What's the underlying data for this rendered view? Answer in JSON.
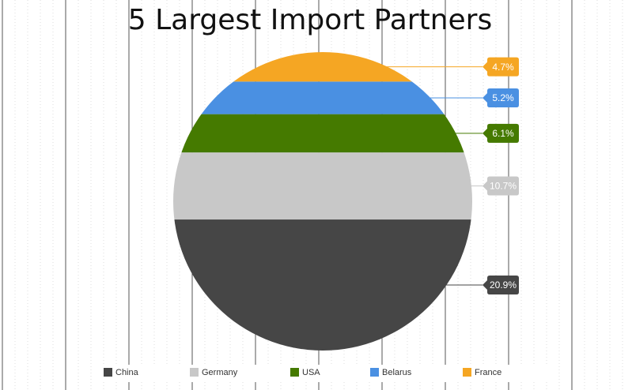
{
  "chart_data": {
    "type": "circle",
    "title": "5 Largest Import Partners",
    "categories": [
      "China",
      "Germany",
      "USA",
      "Belarus",
      "France"
    ],
    "values": [
      20.9,
      10.7,
      6.1,
      5.2,
      4.7
    ],
    "value_labels": [
      "20.9%",
      "10.7%",
      "6.1%",
      "5.2%",
      "4.7%"
    ],
    "colors": [
      "#464646",
      "#c8c8c8",
      "#457a00",
      "#4a90e2",
      "#f5a623"
    ],
    "legend": "bottom"
  }
}
